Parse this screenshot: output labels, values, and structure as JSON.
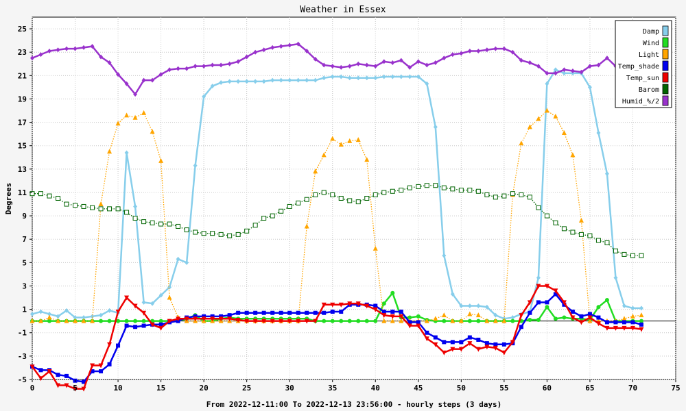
{
  "chart_data": {
    "type": "line",
    "title": "Weather in Essex",
    "xlabel": "From 2022-12-11:00 To 2022-12-13 23:56:00 - hourly steps (3 days)",
    "ylabel": "Degrees",
    "xlim": [
      0,
      75
    ],
    "ylim": [
      -5,
      26
    ],
    "xticks": [
      0,
      5,
      10,
      15,
      20,
      25,
      30,
      35,
      40,
      45,
      50,
      55,
      60,
      65,
      70,
      75
    ],
    "xtick_labels": [
      "0",
      "5",
      "10",
      "15",
      "20",
      "25",
      "30",
      "35",
      "40",
      "45",
      "50",
      "55",
      "60",
      "65",
      "70",
      "75"
    ],
    "yticks": [
      -5,
      -3,
      -1,
      1,
      3,
      5,
      7,
      9,
      11,
      13,
      15,
      17,
      19,
      21,
      23,
      25
    ],
    "ytick_labels": [
      "-5",
      "-3",
      "-1",
      "1",
      "3",
      "5",
      "7",
      "9",
      "11",
      "13",
      "15",
      "17",
      "19",
      "21",
      "23",
      "25"
    ],
    "grid": true,
    "legend_position": "top-right",
    "series": [
      {
        "name": "Damp",
        "color": "#87ceeb",
        "style": "solid",
        "marker": "diamond",
        "values": [
          0.6,
          0.8,
          0.6,
          0.4,
          0.9,
          0.3,
          0.3,
          0.4,
          0.5,
          0.9,
          0.7,
          14.4,
          9.8,
          1.6,
          1.5,
          2.2,
          2.9,
          5.3,
          5.0,
          13.3,
          19.2,
          20.1,
          20.4,
          20.5,
          20.5,
          20.5,
          20.5,
          20.5,
          20.6,
          20.6,
          20.6,
          20.6,
          20.6,
          20.6,
          20.8,
          20.9,
          20.9,
          20.8,
          20.8,
          20.8,
          20.8,
          20.9,
          20.9,
          20.9,
          20.9,
          20.9,
          20.3,
          16.6,
          5.6,
          2.3,
          1.3,
          1.3,
          1.3,
          1.2,
          0.5,
          0.2,
          0.3,
          0.6,
          0.8,
          3.7,
          20.3,
          21.5,
          21.2,
          21.2,
          21.2,
          20.0,
          16.1,
          12.6,
          3.7,
          1.3,
          1.1,
          1.1
        ]
      },
      {
        "name": "Wind",
        "color": "#22dd22",
        "style": "solid",
        "marker": "circle",
        "values": [
          0.0,
          0.0,
          0.0,
          0.0,
          0.0,
          0.0,
          0.0,
          0.0,
          0.0,
          0.0,
          0.0,
          0.0,
          0.0,
          0.0,
          0.0,
          0.0,
          0.0,
          0.0,
          0.2,
          0.5,
          0.0,
          0.0,
          0.2,
          0.3,
          0.2,
          0.2,
          0.2,
          0.2,
          0.2,
          0.2,
          0.2,
          0.2,
          0.2,
          0.0,
          0.0,
          0.0,
          0.0,
          0.0,
          0.0,
          0.0,
          0.0,
          1.5,
          2.4,
          0.3,
          0.3,
          0.4,
          0.1,
          0.0,
          0.0,
          0.0,
          0.0,
          0.0,
          0.0,
          0.0,
          0.0,
          0.0,
          0.0,
          0.0,
          0.1,
          0.1,
          1.2,
          0.2,
          0.3,
          0.2,
          0.2,
          0.1,
          1.2,
          1.8,
          0.0,
          0.0,
          0.0,
          0.0
        ]
      },
      {
        "name": "Light",
        "color": "#ffa500",
        "style": "dotted",
        "marker": "triangle",
        "values": [
          0.0,
          0.0,
          0.3,
          0.0,
          0.0,
          0.0,
          0.0,
          0.0,
          10.0,
          14.5,
          16.9,
          17.6,
          17.4,
          17.8,
          16.2,
          13.7,
          2.0,
          0.3,
          0.0,
          0.0,
          0.0,
          0.0,
          0.0,
          0.0,
          0.0,
          0.0,
          0.0,
          0.0,
          0.0,
          0.0,
          0.0,
          0.0,
          8.1,
          12.8,
          14.2,
          15.6,
          15.1,
          15.4,
          15.5,
          13.8,
          6.2,
          0.0,
          0.0,
          0.0,
          0.0,
          0.0,
          0.0,
          0.2,
          0.5,
          0.0,
          0.0,
          0.6,
          0.5,
          0.0,
          0.0,
          0.0,
          10.8,
          15.2,
          16.6,
          17.3,
          18.0,
          17.5,
          16.1,
          14.2,
          8.6,
          0.0,
          0.0,
          0.0,
          0.0,
          0.2,
          0.4,
          0.5
        ]
      },
      {
        "name": "Temp_shade",
        "color": "#0000ee",
        "style": "solid",
        "marker": "square",
        "values": [
          -3.9,
          -4.2,
          -4.2,
          -4.6,
          -4.7,
          -5.1,
          -5.2,
          -4.3,
          -4.3,
          -3.7,
          -2.1,
          -0.4,
          -0.5,
          -0.4,
          -0.3,
          -0.3,
          -0.1,
          0.0,
          0.3,
          0.4,
          0.4,
          0.4,
          0.4,
          0.5,
          0.7,
          0.7,
          0.7,
          0.7,
          0.7,
          0.7,
          0.7,
          0.7,
          0.7,
          0.7,
          0.7,
          0.8,
          0.8,
          1.4,
          1.4,
          1.4,
          1.3,
          0.8,
          0.8,
          0.8,
          -0.1,
          -0.1,
          -1.0,
          -1.4,
          -1.8,
          -1.8,
          -1.8,
          -1.4,
          -1.6,
          -1.9,
          -2.0,
          -2.0,
          -1.9,
          -0.5,
          0.7,
          1.6,
          1.6,
          2.3,
          1.4,
          0.8,
          0.4,
          0.6,
          0.3,
          -0.1,
          -0.1,
          -0.1,
          -0.1,
          -0.3
        ]
      },
      {
        "name": "Temp_sun",
        "color": "#ee0000",
        "style": "solid",
        "marker": "inv-triangle",
        "values": [
          -3.9,
          -4.9,
          -4.3,
          -5.5,
          -5.5,
          -5.8,
          -5.8,
          -3.8,
          -3.8,
          -2.0,
          0.8,
          2.0,
          1.3,
          0.7,
          -0.3,
          -0.6,
          0.0,
          0.2,
          0.2,
          0.2,
          0.2,
          0.2,
          0.2,
          0.2,
          0.1,
          0.0,
          0.0,
          0.0,
          0.0,
          0.0,
          0.0,
          0.0,
          0.0,
          0.0,
          1.4,
          1.4,
          1.4,
          1.5,
          1.5,
          1.3,
          1.0,
          0.5,
          0.4,
          0.4,
          -0.4,
          -0.4,
          -1.5,
          -2.0,
          -2.7,
          -2.4,
          -2.4,
          -1.9,
          -2.4,
          -2.2,
          -2.3,
          -2.7,
          -1.8,
          0.5,
          1.6,
          3.0,
          3.0,
          2.6,
          1.6,
          0.3,
          -0.1,
          0.3,
          -0.2,
          -0.6,
          -0.6,
          -0.6,
          -0.6,
          -0.7
        ]
      },
      {
        "name": "Barom",
        "color": "#006400",
        "style": "dotted",
        "marker": "hollow-square",
        "values": [
          10.9,
          10.9,
          10.7,
          10.5,
          10.0,
          9.9,
          9.8,
          9.7,
          9.6,
          9.6,
          9.6,
          9.3,
          8.8,
          8.5,
          8.4,
          8.3,
          8.3,
          8.1,
          7.8,
          7.6,
          7.5,
          7.5,
          7.4,
          7.3,
          7.4,
          7.7,
          8.2,
          8.8,
          9.0,
          9.4,
          9.8,
          10.1,
          10.4,
          10.8,
          11.0,
          10.8,
          10.5,
          10.3,
          10.2,
          10.5,
          10.8,
          11.0,
          11.1,
          11.2,
          11.4,
          11.5,
          11.6,
          11.6,
          11.4,
          11.3,
          11.2,
          11.2,
          11.1,
          10.8,
          10.6,
          10.7,
          10.9,
          10.8,
          10.6,
          9.7,
          9.0,
          8.4,
          7.9,
          7.6,
          7.4,
          7.3,
          6.9,
          6.7,
          6.0,
          5.7,
          5.6,
          5.6
        ]
      },
      {
        "name": "Humid_%/2",
        "color": "#9932cc",
        "style": "solid",
        "marker": "diamond",
        "values": [
          22.5,
          22.8,
          23.1,
          23.2,
          23.3,
          23.3,
          23.4,
          23.5,
          22.6,
          22.1,
          21.1,
          20.3,
          19.4,
          20.6,
          20.6,
          21.1,
          21.5,
          21.6,
          21.6,
          21.8,
          21.8,
          21.9,
          21.9,
          22.0,
          22.2,
          22.6,
          23.0,
          23.2,
          23.4,
          23.5,
          23.6,
          23.7,
          23.1,
          22.4,
          21.9,
          21.8,
          21.7,
          21.8,
          22.0,
          21.9,
          21.8,
          22.2,
          22.1,
          22.3,
          21.7,
          22.2,
          21.9,
          22.1,
          22.5,
          22.8,
          22.9,
          23.1,
          23.1,
          23.2,
          23.3,
          23.3,
          23.0,
          22.3,
          22.1,
          21.8,
          21.2,
          21.2,
          21.5,
          21.4,
          21.3,
          21.8,
          21.9,
          22.5,
          21.8,
          null,
          null,
          null
        ]
      }
    ]
  }
}
